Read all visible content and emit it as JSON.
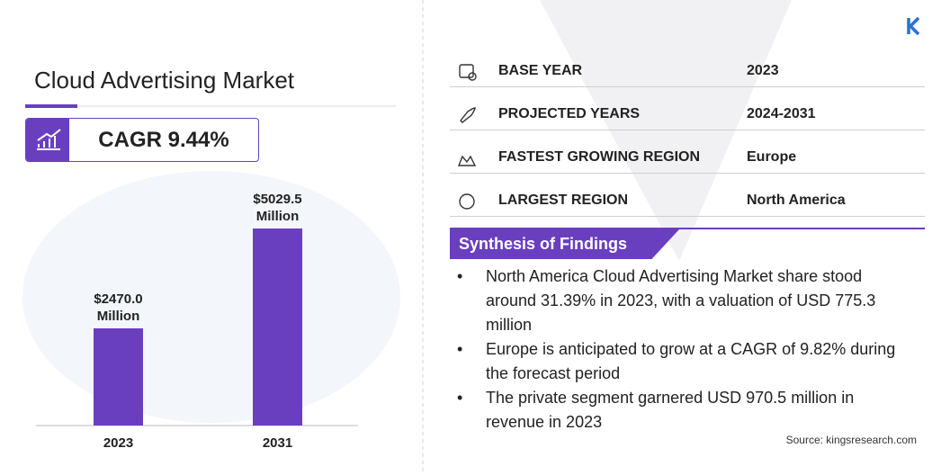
{
  "header": {
    "title": "Cloud Advertising Market",
    "cagr": "CAGR 9.44%"
  },
  "chart_data": {
    "type": "bar",
    "categories": [
      "2023",
      "2031"
    ],
    "values": [
      2470.0,
      5029.5
    ],
    "value_labels": [
      "$2470.0 Million",
      "$5029.5 Million"
    ],
    "color": "#6a3fbf"
  },
  "table": {
    "rows": [
      [
        "BASE YEAR",
        "2023"
      ],
      [
        "PROJECTED YEARS",
        "2024-2031"
      ],
      [
        "FASTEST GROWING REGION",
        "Europe"
      ],
      [
        "LARGEST REGION",
        "North America"
      ]
    ]
  },
  "synthesis": {
    "title": "Synthesis of Findings",
    "bullets": [
      "North America Cloud Advertising Market share stood around 31.39% in 2023, with a valuation of USD 775.3 million",
      "Europe is anticipated to grow at a CAGR of 9.82% during the forecast period",
      "The private segment garnered USD 970.5 million in revenue in 2023"
    ]
  },
  "source": "Source: kingsresearch.com"
}
